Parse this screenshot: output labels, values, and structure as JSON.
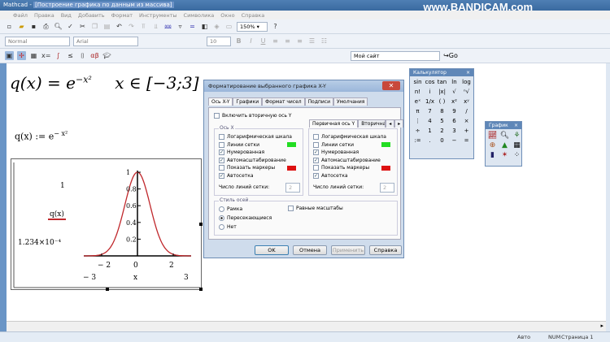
{
  "window": {
    "app": "Mathcad",
    "title_sep": " - ",
    "document": "[Построение графика по данным из массива]"
  },
  "watermark": "www.BANDICAM.com",
  "menu": [
    "Файл",
    "Правка",
    "Вид",
    "Добавить",
    "Формат",
    "Инструменты",
    "Символика",
    "Окно",
    "Справка"
  ],
  "toolbar": {
    "zoom": "150%",
    "style": "Normal",
    "font": "Arial",
    "font_size": "10",
    "site": "Мой сайт",
    "go": "Go"
  },
  "worksheet": {
    "heading_lhs": "q(x) = e",
    "heading_exp": "−x²",
    "heading_domain": "x ∈ [−3;3]",
    "definition_lhs": "q(x) := e",
    "definition_exp": "− x²",
    "plot": {
      "y_max_label": "1",
      "y_min_label": "1.234×10⁻⁴",
      "legend": "q(x)",
      "x_min": "− 3",
      "x_max": "3",
      "x_label": "x",
      "x_ticks": [
        "− 2",
        "0",
        "2"
      ],
      "y_ticks": [
        "0.2",
        "0.4",
        "0.6",
        "0.8",
        "1"
      ],
      "trace_color": "#c0282c"
    }
  },
  "dialog": {
    "title": "Форматирование выбранного графика X-Y",
    "tabs": [
      "Ось X-Y",
      "Графики",
      "Формат чисел",
      "Подписи",
      "Умолчания"
    ],
    "secondary_y": "Включить вторичную ось Y",
    "x_axis": {
      "group": "Ось X",
      "items": [
        {
          "label": "Логарифмическая шкала",
          "checked": false
        },
        {
          "label": "Линии сетки",
          "checked": false,
          "swatch": "#22dd22"
        },
        {
          "label": "Нумерованная",
          "checked": true
        },
        {
          "label": "Автомасштабирование",
          "checked": true
        },
        {
          "label": "Показать маркеры",
          "checked": false,
          "swatch": "#dd1111"
        },
        {
          "label": "Автосетка",
          "checked": true
        }
      ],
      "grid_count_label": "Число линий сетки:",
      "grid_count": "2"
    },
    "y_tabs": [
      "Первичная ось Y",
      "Вторичная"
    ],
    "y_axis": {
      "items": [
        {
          "label": "Логарифмическая шкала",
          "checked": false
        },
        {
          "label": "Линии сетки",
          "checked": false,
          "swatch": "#22dd22"
        },
        {
          "label": "Нумерованная",
          "checked": true
        },
        {
          "label": "Автомасштабирование",
          "checked": true
        },
        {
          "label": "Показать маркеры",
          "checked": false,
          "swatch": "#dd1111"
        },
        {
          "label": "Автосетка",
          "checked": true
        }
      ],
      "grid_count_label": "Число линий сетки:",
      "grid_count": "2"
    },
    "axis_style": {
      "group": "Стиль осей",
      "options": [
        "Рамка",
        "Пересекающиеся",
        "Нет"
      ],
      "selected": "Пересекающиеся",
      "equal_scales": "Равные масштабы"
    },
    "buttons": {
      "ok": "OK",
      "cancel": "Отмена",
      "apply": "Применить",
      "help": "Справка"
    }
  },
  "calculator": {
    "title": "Калькулятор",
    "keys": [
      "sin",
      "cos",
      "tan",
      "ln",
      "log",
      "n!",
      "i",
      "|x|",
      "√",
      "ⁿ√",
      "eˣ",
      "1/x",
      "( )",
      "x²",
      "xʸ",
      "π",
      "7",
      "8",
      "9",
      "/",
      "⋮",
      "4",
      "5",
      "6",
      "×",
      "÷",
      "1",
      "2",
      "3",
      "+",
      ":=",
      ".",
      "0",
      "−",
      "="
    ]
  },
  "graph_palette": {
    "title": "График"
  },
  "status": {
    "mode": "Авто",
    "num": "NUM",
    "page": "Страница 1"
  }
}
